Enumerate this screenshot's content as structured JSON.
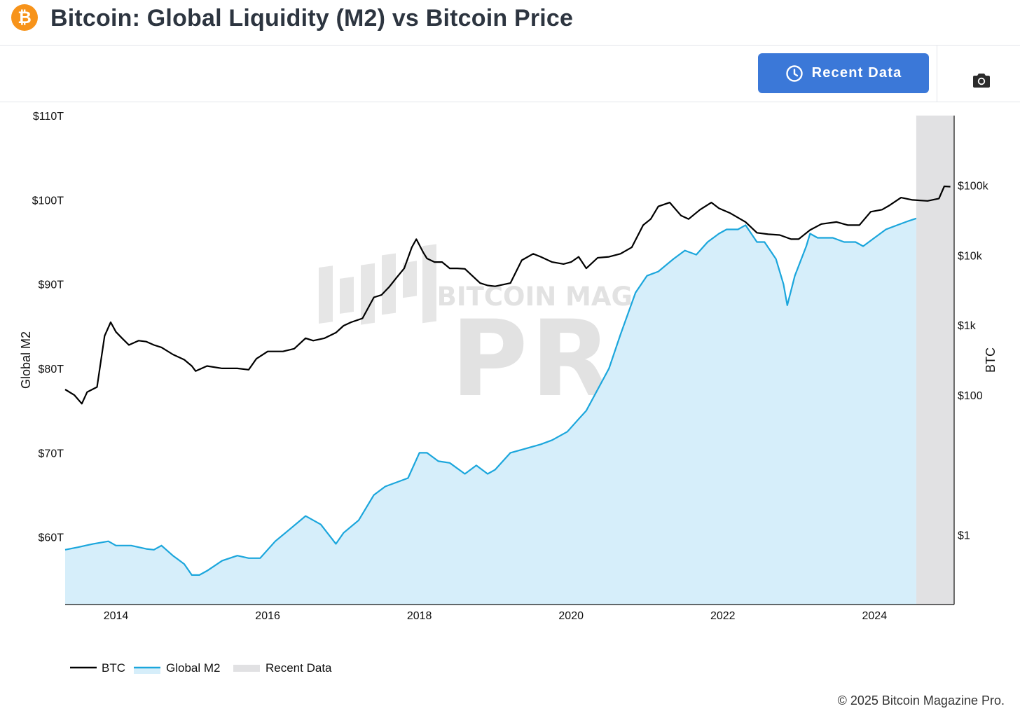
{
  "header": {
    "title": "Bitcoin: Global Liquidity (M2) vs Bitcoin Price",
    "logo_symbol": "₿",
    "logo_color": "#f7931a"
  },
  "toolbar": {
    "recent_data_label": "Recent Data",
    "recent_data_icon": "clock-icon",
    "screenshot_icon": "camera-icon",
    "button_color": "#3b78d8"
  },
  "watermark": {
    "line1": "BITCOIN MAGAZINE",
    "line2": "PRO",
    "registered": "®"
  },
  "footer": {
    "copyright": "© 2025 Bitcoin Magazine Pro."
  },
  "chart_data": {
    "type": "line",
    "left_axis": {
      "label": "Global M2",
      "ticks": [
        60,
        70,
        80,
        90,
        100,
        110
      ],
      "tick_labels": [
        "$60T",
        "$70T",
        "$80T",
        "$90T",
        "$100T",
        "$110T"
      ],
      "range": [
        52,
        110
      ]
    },
    "right_axis": {
      "label": "BTC",
      "scale": "log",
      "ticks": [
        1,
        100,
        1000,
        10000,
        100000
      ],
      "tick_labels": [
        "$1",
        "$100",
        "$1k",
        "$10k",
        "$100k"
      ],
      "range": [
        0.1,
        1000000
      ]
    },
    "x_axis": {
      "ticks": [
        2014,
        2016,
        2018,
        2020,
        2022,
        2024
      ],
      "tick_labels": [
        "2014",
        "2016",
        "2018",
        "2020",
        "2022",
        "2024"
      ],
      "range": [
        2013.33,
        2025.05
      ]
    },
    "recent_data_range": [
      2024.55,
      2025.05
    ],
    "legend": {
      "placement": "bottom-left",
      "items": [
        "BTC",
        "Global M2",
        "Recent Data"
      ]
    },
    "colors": {
      "btc": "#000000",
      "m2_line": "#1ba6dc",
      "m2_fill": "#d6eefa",
      "recent": "#e1e1e3"
    },
    "series": [
      {
        "name": "BTC",
        "axis": "right",
        "x": [
          2013.33,
          2013.45,
          2013.55,
          2013.62,
          2013.75,
          2013.85,
          2013.93,
          2014.0,
          2014.08,
          2014.17,
          2014.3,
          2014.4,
          2014.5,
          2014.6,
          2014.75,
          2014.9,
          2015.0,
          2015.05,
          2015.2,
          2015.4,
          2015.6,
          2015.75,
          2015.85,
          2016.0,
          2016.2,
          2016.35,
          2016.5,
          2016.6,
          2016.75,
          2016.9,
          2017.0,
          2017.1,
          2017.25,
          2017.4,
          2017.5,
          2017.6,
          2017.7,
          2017.8,
          2017.9,
          2017.96,
          2018.05,
          2018.1,
          2018.2,
          2018.3,
          2018.4,
          2018.5,
          2018.6,
          2018.8,
          2018.9,
          2019.0,
          2019.2,
          2019.35,
          2019.5,
          2019.6,
          2019.75,
          2019.9,
          2020.0,
          2020.1,
          2020.2,
          2020.35,
          2020.5,
          2020.65,
          2020.8,
          2020.95,
          2021.05,
          2021.15,
          2021.3,
          2021.45,
          2021.55,
          2021.7,
          2021.85,
          2021.95,
          2022.1,
          2022.3,
          2022.45,
          2022.6,
          2022.75,
          2022.9,
          2023.0,
          2023.15,
          2023.3,
          2023.5,
          2023.65,
          2023.8,
          2023.95,
          2024.1,
          2024.2,
          2024.35,
          2024.5,
          2024.6,
          2024.7,
          2024.85,
          2024.92,
          2025.0
        ],
        "values": [
          120,
          100,
          75,
          110,
          130,
          700,
          1100,
          800,
          650,
          520,
          600,
          580,
          520,
          480,
          380,
          320,
          260,
          220,
          260,
          240,
          240,
          230,
          330,
          420,
          420,
          460,
          650,
          600,
          650,
          780,
          980,
          1100,
          1250,
          2500,
          2700,
          3500,
          4800,
          6500,
          13000,
          17000,
          11000,
          9000,
          8000,
          8000,
          6500,
          6500,
          6400,
          4000,
          3700,
          3600,
          4000,
          8500,
          10500,
          9500,
          8000,
          7500,
          8000,
          9500,
          6500,
          9200,
          9500,
          10500,
          13000,
          27000,
          33000,
          50000,
          57000,
          37000,
          33000,
          45000,
          57000,
          47000,
          40000,
          30000,
          21000,
          20000,
          19500,
          17000,
          17000,
          23000,
          28000,
          30000,
          27000,
          27000,
          42000,
          45000,
          52000,
          67000,
          62000,
          61000,
          60000,
          65000,
          97000,
          96000
        ]
      },
      {
        "name": "Global M2",
        "axis": "left",
        "x": [
          2013.33,
          2013.5,
          2013.7,
          2013.9,
          2014.0,
          2014.2,
          2014.4,
          2014.5,
          2014.6,
          2014.75,
          2014.9,
          2015.0,
          2015.1,
          2015.2,
          2015.4,
          2015.6,
          2015.75,
          2015.9,
          2016.1,
          2016.3,
          2016.5,
          2016.7,
          2016.9,
          2017.0,
          2017.2,
          2017.4,
          2017.55,
          2017.7,
          2017.85,
          2018.0,
          2018.1,
          2018.25,
          2018.4,
          2018.6,
          2018.75,
          2018.9,
          2019.0,
          2019.2,
          2019.4,
          2019.6,
          2019.75,
          2019.95,
          2020.1,
          2020.2,
          2020.35,
          2020.5,
          2020.65,
          2020.85,
          2021.0,
          2021.15,
          2021.35,
          2021.5,
          2021.65,
          2021.8,
          2021.95,
          2022.05,
          2022.2,
          2022.3,
          2022.45,
          2022.55,
          2022.7,
          2022.8,
          2022.85,
          2022.95,
          2023.1,
          2023.15,
          2023.25,
          2023.45,
          2023.6,
          2023.75,
          2023.85,
          2024.0,
          2024.15,
          2024.3,
          2024.45,
          2024.55
        ],
        "values": [
          58.5,
          58.8,
          59.2,
          59.5,
          59.0,
          59.0,
          58.6,
          58.5,
          59.0,
          57.8,
          56.8,
          55.5,
          55.5,
          56.0,
          57.2,
          57.8,
          57.5,
          57.5,
          59.5,
          61.0,
          62.5,
          61.5,
          59.2,
          60.5,
          62.0,
          65.0,
          66.0,
          66.5,
          67.0,
          70.0,
          70.0,
          69.0,
          68.8,
          67.5,
          68.5,
          67.5,
          68.0,
          70.0,
          70.5,
          71.0,
          71.5,
          72.5,
          74.0,
          75.0,
          77.5,
          80.0,
          84.0,
          89.0,
          91.0,
          91.5,
          93.0,
          94.0,
          93.5,
          95.0,
          96.0,
          96.5,
          96.5,
          97.0,
          95.0,
          95.0,
          93.0,
          90.0,
          87.5,
          91.0,
          94.5,
          96.0,
          95.5,
          95.5,
          95.0,
          95.0,
          94.5,
          95.5,
          96.5,
          97.0,
          97.5,
          97.8
        ]
      }
    ]
  }
}
